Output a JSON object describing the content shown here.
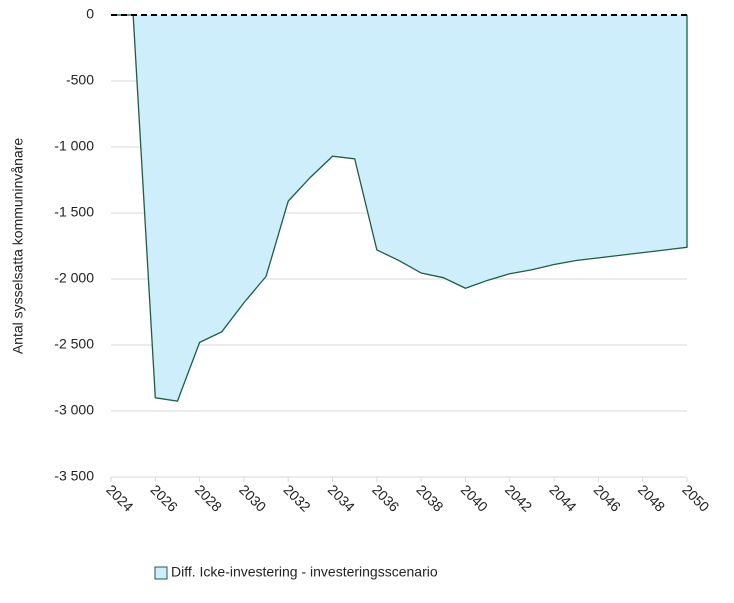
{
  "chart_data": {
    "type": "area",
    "ylabel": "Antal sysselsatta kommuninvånare",
    "x": [
      2024,
      2025,
      2026,
      2027,
      2028,
      2029,
      2030,
      2031,
      2032,
      2033,
      2034,
      2035,
      2036,
      2037,
      2038,
      2039,
      2040,
      2041,
      2042,
      2043,
      2044,
      2045,
      2046,
      2047,
      2048,
      2049,
      2050
    ],
    "series": [
      {
        "name": "Diff. Icke-investering - investeringsscenario",
        "color": "#cdeefa",
        "line_color": "#1f5c46",
        "values": [
          0,
          0,
          -2900,
          -2925,
          -2480,
          -2400,
          -2180,
          -1980,
          -1410,
          -1230,
          -1070,
          -1090,
          -1780,
          -1860,
          -1955,
          -1990,
          -2070,
          -2010,
          -1960,
          -1930,
          -1890,
          -1860,
          -1840,
          -1820,
          -1800,
          -1780,
          -1760
        ]
      }
    ],
    "xlim": [
      2024,
      2050
    ],
    "xticks": [
      2024,
      2026,
      2028,
      2030,
      2032,
      2034,
      2036,
      2038,
      2040,
      2042,
      2044,
      2046,
      2048,
      2050
    ],
    "ylim": [
      -3500,
      0
    ],
    "yticks": [
      0,
      {
        "value": -500,
        "label": "-500"
      },
      {
        "value": -1000,
        "label": "-1 000"
      },
      {
        "value": -1500,
        "label": "-1 500"
      },
      {
        "value": -2000,
        "label": "-2 000"
      },
      {
        "value": -2500,
        "label": "-2 500"
      },
      {
        "value": -3000,
        "label": "-3 000"
      },
      {
        "value": -3500,
        "label": "-3 500"
      }
    ],
    "grid": true,
    "legend": "bottom-left"
  }
}
